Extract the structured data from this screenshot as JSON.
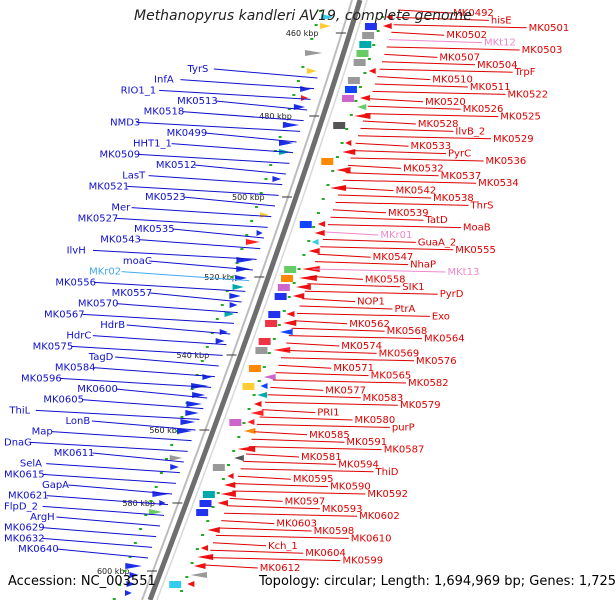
{
  "title": "Methanopyrus kandleri AV19, complete genome",
  "accession": "Accession: NC_003551",
  "topology": "Topology: circular; Length: 1,694,969 bp; Genes: 1,725",
  "colors": {
    "left_labels": "#1010cc",
    "right_labels": "#dd0000",
    "rna_left": "#44aaee",
    "rna_right": "#ee88cc",
    "backbone": "#777777",
    "ticks": "#22aa22"
  },
  "kbp_ticks": [
    "460 kbp",
    "480 kbp",
    "500 kbp",
    "520 kbp",
    "540 kbp",
    "560 kbp",
    "580 kbp",
    "600 kbp"
  ],
  "left_labels": [
    "TyrS",
    "InfA",
    "RIO1_1",
    "MK0513",
    "MK0518",
    "NMD3",
    "MK0499",
    "HHT1_1",
    "MK0509",
    "MK0512",
    "LasT",
    "MK0521",
    "MK0523",
    "Mer",
    "MK0527",
    "MK0535",
    "MK0543",
    "IlvH",
    "moaC",
    "MKr02",
    "MK0556",
    "MK0557",
    "MK0570",
    "MK0567",
    "HdrB",
    "HdrC",
    "MK0575",
    "TagD",
    "MK0584",
    "MK0596",
    "MK0600",
    "MK0605",
    "ThiL",
    "LonB",
    "Map",
    "DnaG",
    "MK0611",
    "SelA",
    "MK0615",
    "GapA",
    "MK0621",
    "FlpD_2",
    "ArgH",
    "MK0629",
    "MK0632",
    "MK0640"
  ],
  "right_labels": [
    "MK0492",
    "hisE",
    "MK0501",
    "MK0502",
    "MKt12",
    "MK0503",
    "MK0507",
    "MK0504",
    "TrpF",
    "MK0510",
    "MK0511",
    "MK0522",
    "MK0520",
    "MK0526",
    "MK0525",
    "MK0528",
    "IlvB_2",
    "MK0529",
    "MK0533",
    "PyrC",
    "MK0536",
    "MK0532",
    "MK0537",
    "MK0534",
    "MK0542",
    "MK0538",
    "ThrS",
    "MK0539",
    "TatD",
    "MoaB",
    "MKr01",
    "GuaA_2",
    "MK0555",
    "MK0547",
    "NhaP",
    "MKt13",
    "MK0558",
    "SIK1",
    "PyrD",
    "NOP1",
    "PtrA",
    "Exo",
    "MK0562",
    "MK0568",
    "MK0564",
    "MK0574",
    "MK0569",
    "MK0576",
    "MK0571",
    "MK0565",
    "MK0582",
    "MK0577",
    "MK0583",
    "MK0579",
    "PRI1",
    "MK0580",
    "purP",
    "MK0585",
    "MK0591",
    "MK0587",
    "MK0581",
    "MK0594",
    "ThiD",
    "MK0595",
    "MK0590",
    "MK0592",
    "MK0597",
    "MK0593",
    "MK0602",
    "MK0603",
    "MK0598",
    "MK0610",
    "Kch_1",
    "MK0604",
    "MK0599",
    "MK0612"
  ]
}
